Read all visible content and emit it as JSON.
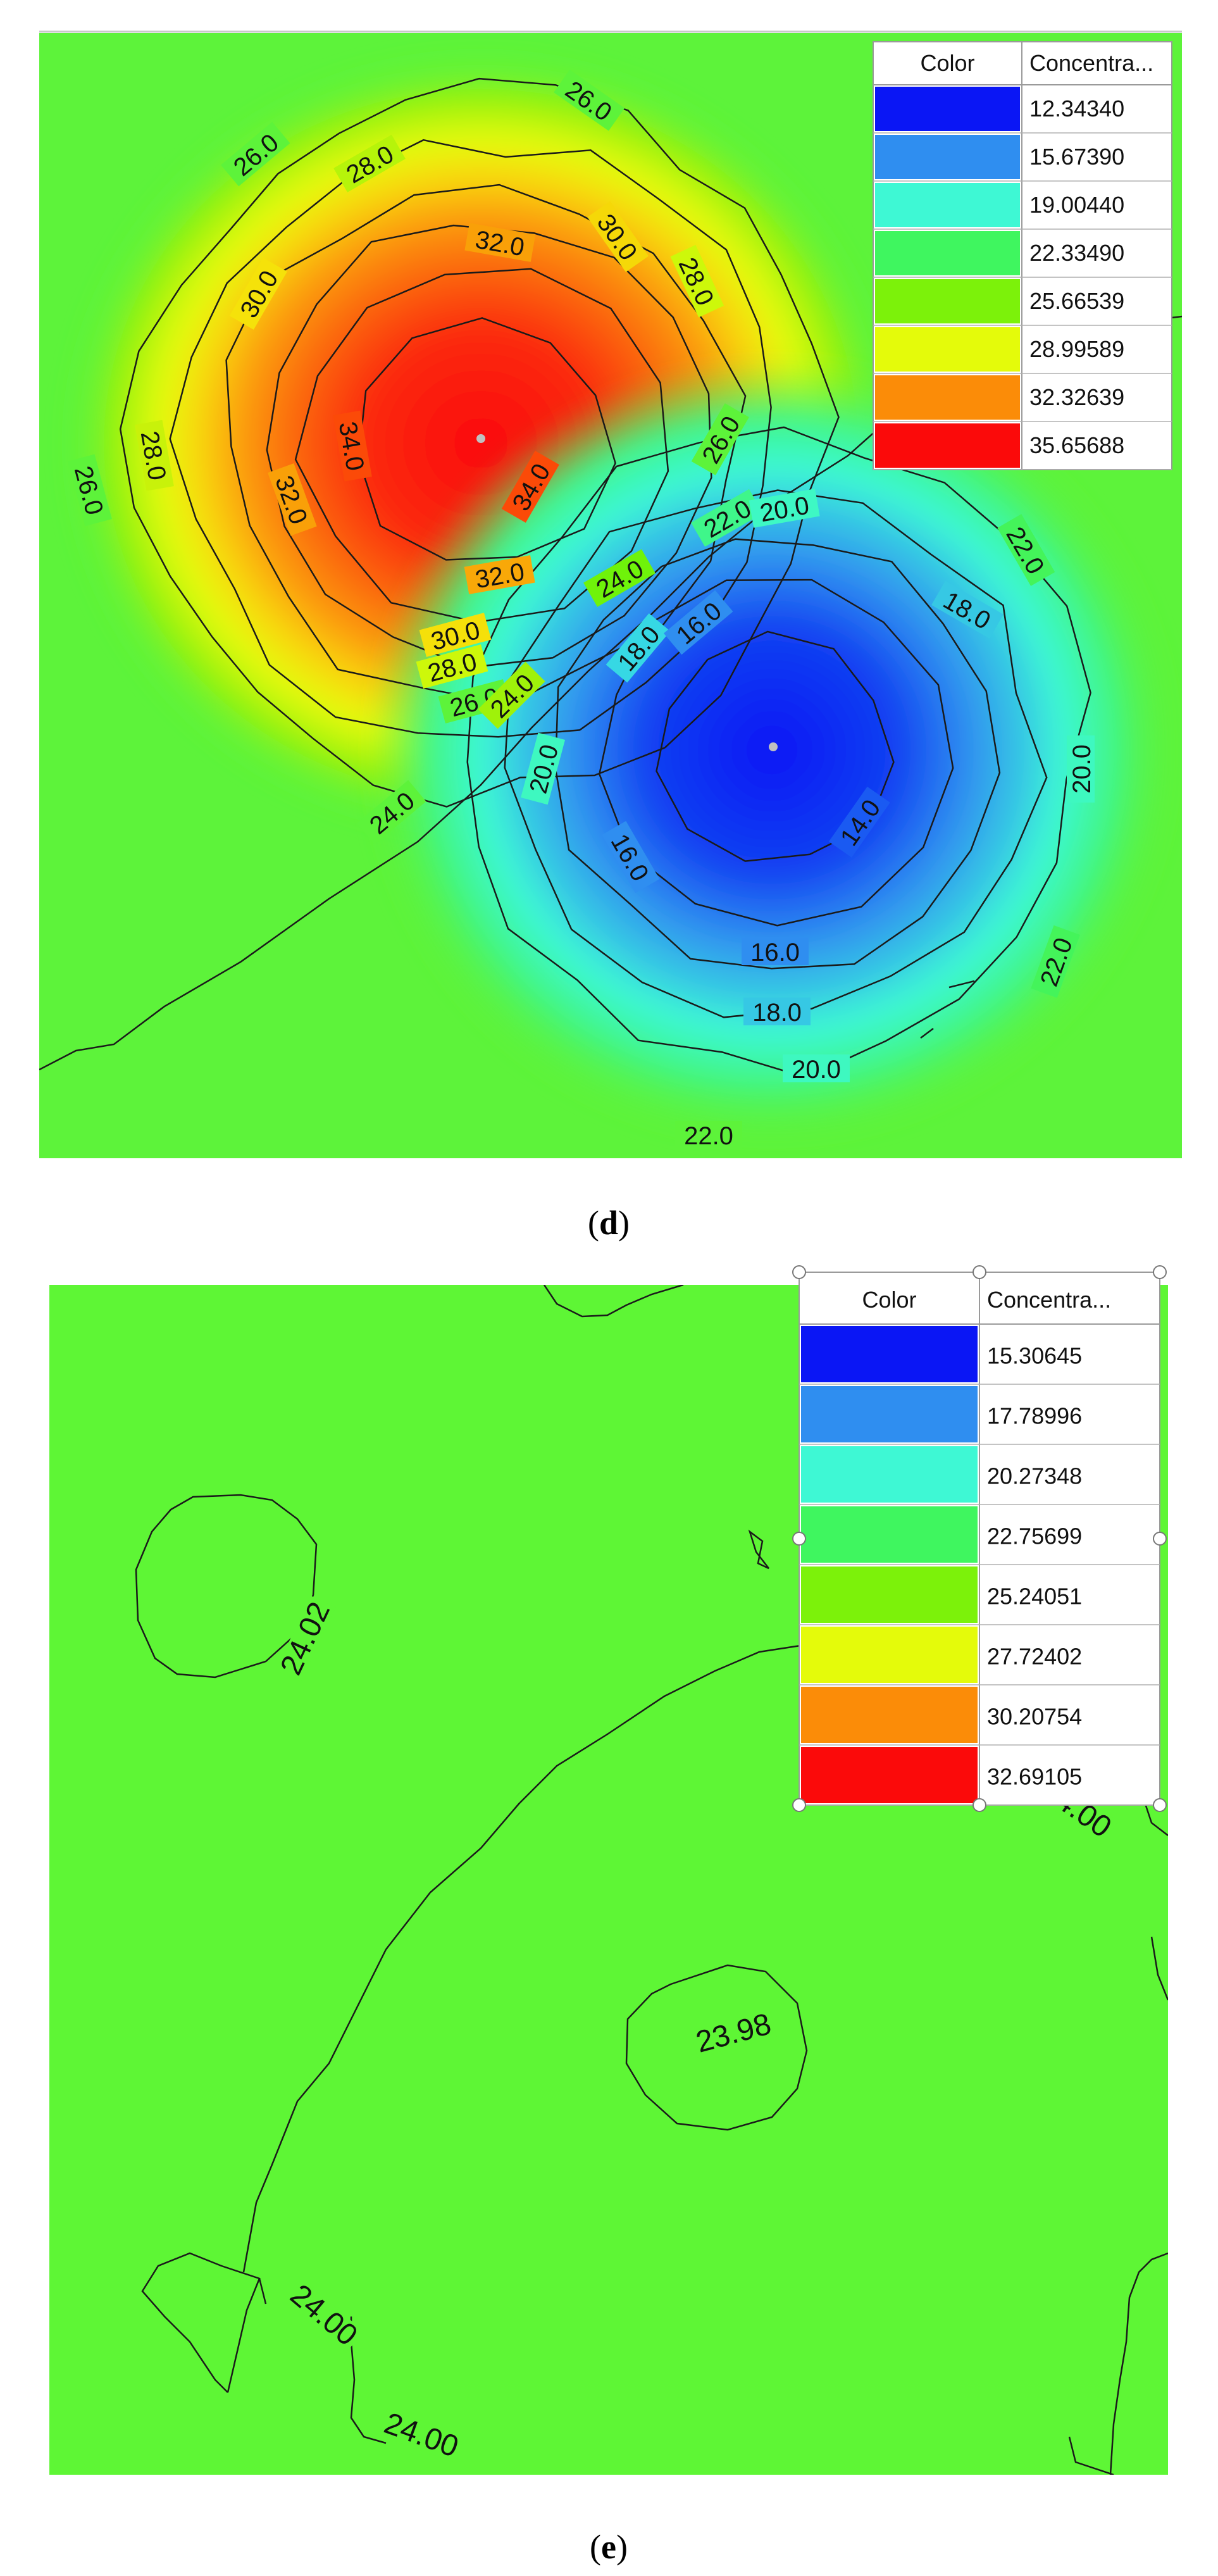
{
  "panels": [
    {
      "caption": "d",
      "legend_headers": [
        "Color",
        "Concentra..."
      ],
      "legend": [
        {
          "color": "#0a16f5",
          "value": "12.34340"
        },
        {
          "color": "#2f8ef0",
          "value": "15.67390"
        },
        {
          "color": "#3ef8d4",
          "value": "19.00440"
        },
        {
          "color": "#3ff65f",
          "value": "22.33490"
        },
        {
          "color": "#7cf20a",
          "value": "25.66539"
        },
        {
          "color": "#e4fb0a",
          "value": "28.99589"
        },
        {
          "color": "#fb8c08",
          "value": "32.32639"
        },
        {
          "color": "#fb0a0a",
          "value": "35.65688"
        }
      ],
      "contour_labels": [
        "26.0",
        "26.0",
        "26.0",
        "26.0",
        "26.0",
        "28.0",
        "28.0",
        "28.0",
        "28.0",
        "30.0",
        "30.0",
        "30.0",
        "32.0",
        "32.0",
        "32.0",
        "34.0",
        "34.0",
        "24.0",
        "24.0",
        "24.0",
        "22.0",
        "22.0",
        "22.0",
        "22.0",
        "20.0",
        "20.0",
        "20.0",
        "20.0",
        "18.0",
        "18.0",
        "18.0",
        "16.0",
        "16.0",
        "16.0",
        "14.0"
      ]
    },
    {
      "caption": "e",
      "legend_headers": [
        "Color",
        "Concentra..."
      ],
      "legend": [
        {
          "color": "#0a16f5",
          "value": "15.30645"
        },
        {
          "color": "#2f8ef0",
          "value": "17.78996"
        },
        {
          "color": "#3ef8d4",
          "value": "20.27348"
        },
        {
          "color": "#3ff65f",
          "value": "22.75699"
        },
        {
          "color": "#7cf20a",
          "value": "25.24051"
        },
        {
          "color": "#e4fb0a",
          "value": "27.72402"
        },
        {
          "color": "#fb8c08",
          "value": "30.20754"
        },
        {
          "color": "#fb0a0a",
          "value": "32.69105"
        }
      ],
      "contour_labels": [
        "24.02",
        "23.98",
        "24.00",
        "24.00",
        "24.00"
      ]
    }
  ],
  "colors": {
    "background_d": "#5df33a",
    "background_e": "#5ef635",
    "contour": "#1a1a1a"
  },
  "chart_data": [
    {
      "type": "heatmap",
      "title": "",
      "xlabel": "",
      "ylabel": "",
      "legend_position": "top-right",
      "levels": [
        12.3434,
        15.6739,
        19.0044,
        22.3349,
        25.66539,
        28.99589,
        32.32639,
        35.65688
      ],
      "contour_values": [
        14.0,
        16.0,
        18.0,
        20.0,
        22.0,
        24.0,
        26.0,
        28.0,
        30.0,
        32.0,
        34.0
      ],
      "peaks": [
        {
          "kind": "maximum",
          "value": 35.6
        },
        {
          "kind": "minimum",
          "value": 12.4
        }
      ],
      "background_value": 24.0
    },
    {
      "type": "heatmap",
      "title": "",
      "xlabel": "",
      "ylabel": "",
      "legend_position": "top-right",
      "levels": [
        15.30645,
        17.78996,
        20.27348,
        22.75699,
        25.24051,
        27.72402,
        30.20754,
        32.69105
      ],
      "contour_values": [
        23.98,
        24.0,
        24.02
      ],
      "background_value": 24.0
    }
  ]
}
